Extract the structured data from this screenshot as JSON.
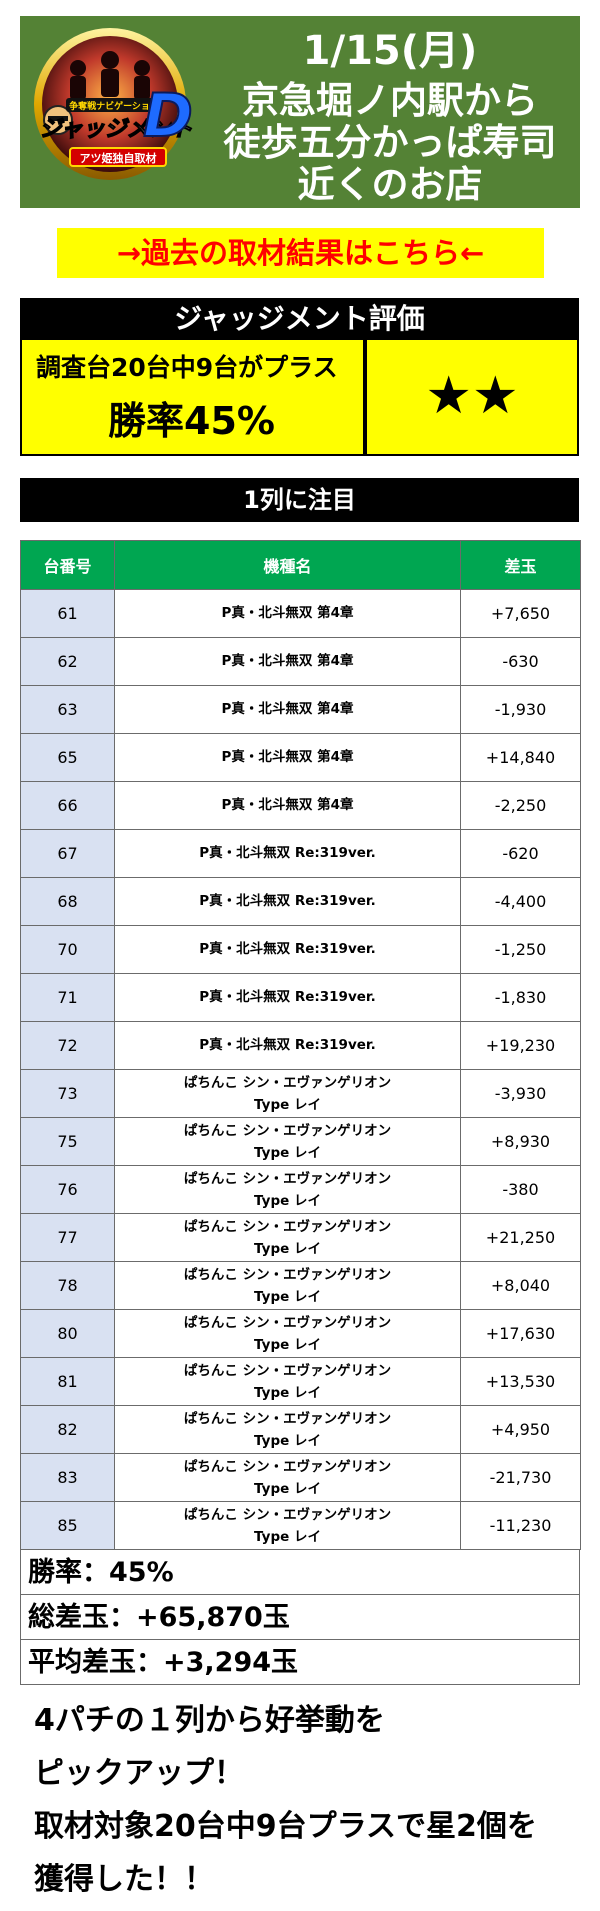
{
  "header": {
    "logo": {
      "icon": "judgement-d-logo",
      "texts": [
        "争奪戦ナビゲーション",
        "ジャッジメント",
        "D",
        "アツ姫独自取材"
      ]
    },
    "date": "1/15(月)",
    "lines": [
      "京急堀ノ内駅から",
      "徒歩五分かっぱ寿司",
      "近くのお店"
    ]
  },
  "past_results_link": "→過去の取材結果はこちら←",
  "evaluation": {
    "title": "ジャッジメント評価",
    "sub": "調査台20台中9台がプラス",
    "rate": "勝率45%",
    "stars": "★★"
  },
  "focus_title": "1列に注目",
  "table": {
    "headers": [
      "台番号",
      "機種名",
      "差玉"
    ],
    "rows": [
      {
        "no": "61",
        "model": [
          "P真・北斗無双 第4章"
        ],
        "diff": "+7,650"
      },
      {
        "no": "62",
        "model": [
          "P真・北斗無双 第4章"
        ],
        "diff": "-630"
      },
      {
        "no": "63",
        "model": [
          "P真・北斗無双 第4章"
        ],
        "diff": "-1,930"
      },
      {
        "no": "65",
        "model": [
          "P真・北斗無双 第4章"
        ],
        "diff": "+14,840"
      },
      {
        "no": "66",
        "model": [
          "P真・北斗無双 第4章"
        ],
        "diff": "-2,250"
      },
      {
        "no": "67",
        "model": [
          "P真・北斗無双 Re:319ver."
        ],
        "diff": "-620"
      },
      {
        "no": "68",
        "model": [
          "P真・北斗無双 Re:319ver."
        ],
        "diff": "-4,400"
      },
      {
        "no": "70",
        "model": [
          "P真・北斗無双 Re:319ver."
        ],
        "diff": "-1,250"
      },
      {
        "no": "71",
        "model": [
          "P真・北斗無双 Re:319ver."
        ],
        "diff": "-1,830"
      },
      {
        "no": "72",
        "model": [
          "P真・北斗無双 Re:319ver."
        ],
        "diff": "+19,230"
      },
      {
        "no": "73",
        "model": [
          "ぱちんこ シン・エヴァンゲリオン",
          "Type レイ"
        ],
        "diff": "-3,930"
      },
      {
        "no": "75",
        "model": [
          "ぱちんこ シン・エヴァンゲリオン",
          "Type レイ"
        ],
        "diff": "+8,930"
      },
      {
        "no": "76",
        "model": [
          "ぱちんこ シン・エヴァンゲリオン",
          "Type レイ"
        ],
        "diff": "-380"
      },
      {
        "no": "77",
        "model": [
          "ぱちんこ シン・エヴァンゲリオン",
          "Type レイ"
        ],
        "diff": "+21,250"
      },
      {
        "no": "78",
        "model": [
          "ぱちんこ シン・エヴァンゲリオン",
          "Type レイ"
        ],
        "diff": "+8,040"
      },
      {
        "no": "80",
        "model": [
          "ぱちんこ シン・エヴァンゲリオン",
          "Type レイ"
        ],
        "diff": "+17,630"
      },
      {
        "no": "81",
        "model": [
          "ぱちんこ シン・エヴァンゲリオン",
          "Type レイ"
        ],
        "diff": "+13,530"
      },
      {
        "no": "82",
        "model": [
          "ぱちんこ シン・エヴァンゲリオン",
          "Type レイ"
        ],
        "diff": "+4,950"
      },
      {
        "no": "83",
        "model": [
          "ぱちんこ シン・エヴァンゲリオン",
          "Type レイ"
        ],
        "diff": "-21,730"
      },
      {
        "no": "85",
        "model": [
          "ぱちんこ シン・エヴァンゲリオン",
          "Type レイ"
        ],
        "diff": "-11,230"
      }
    ]
  },
  "summary": {
    "win_rate": "勝率：45%",
    "total": "総差玉：+65,870玉",
    "average": "平均差玉：+3,294玉"
  },
  "comment": [
    "4パチの１列から好挙動を",
    "ピックアップ！",
    "取材対象20台中9台プラスで星2個を",
    "獲得した！！"
  ],
  "colors": {
    "header_bg": "#548235",
    "link_bg": "#ffff00",
    "link_text": "#ff0000",
    "eval_bg": "#ffff00",
    "table_header_bg": "#00a651",
    "table_number_bg": "#d9e1f2"
  }
}
